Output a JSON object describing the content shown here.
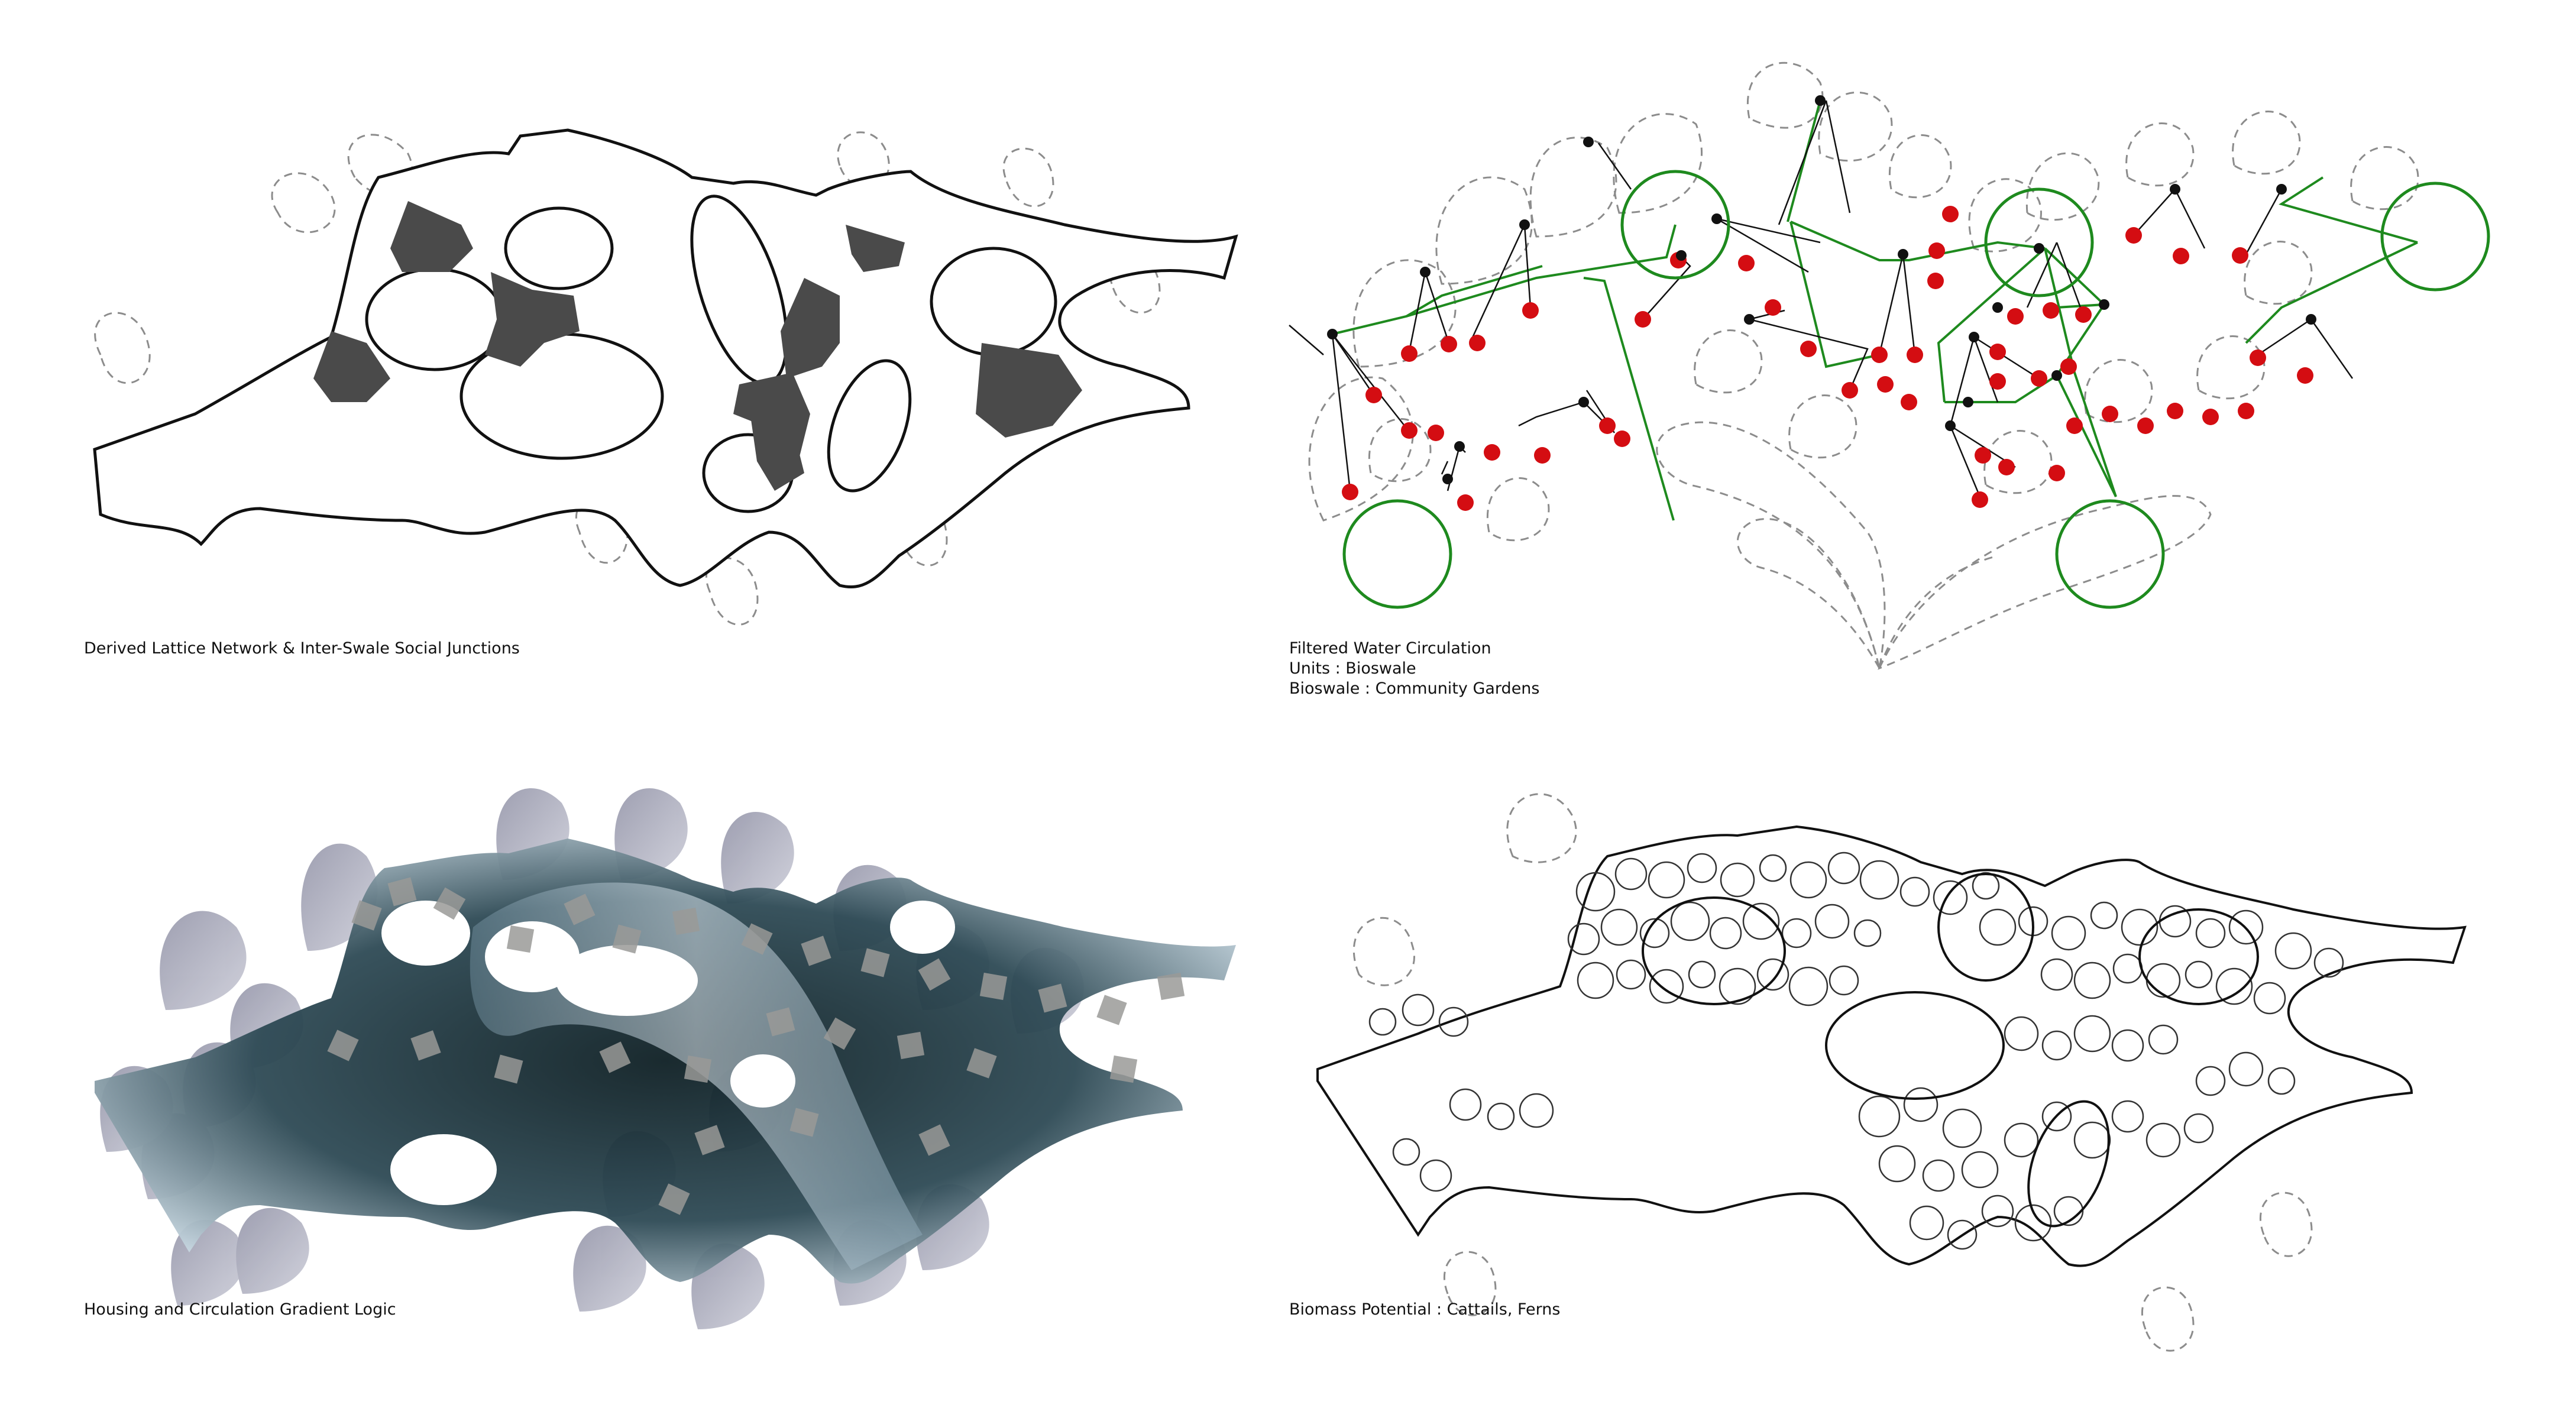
{
  "panels": {
    "lattice": {
      "caption": "Derived Lattice Network & Inter-Swale Social Junctions"
    },
    "water": {
      "caption_lines": [
        "Filtered Water Circulation",
        "Units : Bioswale",
        "Bioswale : Community Gardens"
      ]
    },
    "housing": {
      "caption": "Housing and Circulation Gradient Logic"
    },
    "biomass": {
      "caption": "Biomass Potential : Cattails, Ferns"
    }
  },
  "colors": {
    "outline": "#111111",
    "dashed_petal": "#8c8c8c",
    "junction_fill": "#4a4a4a",
    "network_green": "#1e8a1e",
    "garden_red": "#d40d12",
    "node_black": "#111111",
    "housing_dark": "#1d3138",
    "housing_light": "#c8d8e2",
    "petal_grey": "#a9a9b8"
  }
}
